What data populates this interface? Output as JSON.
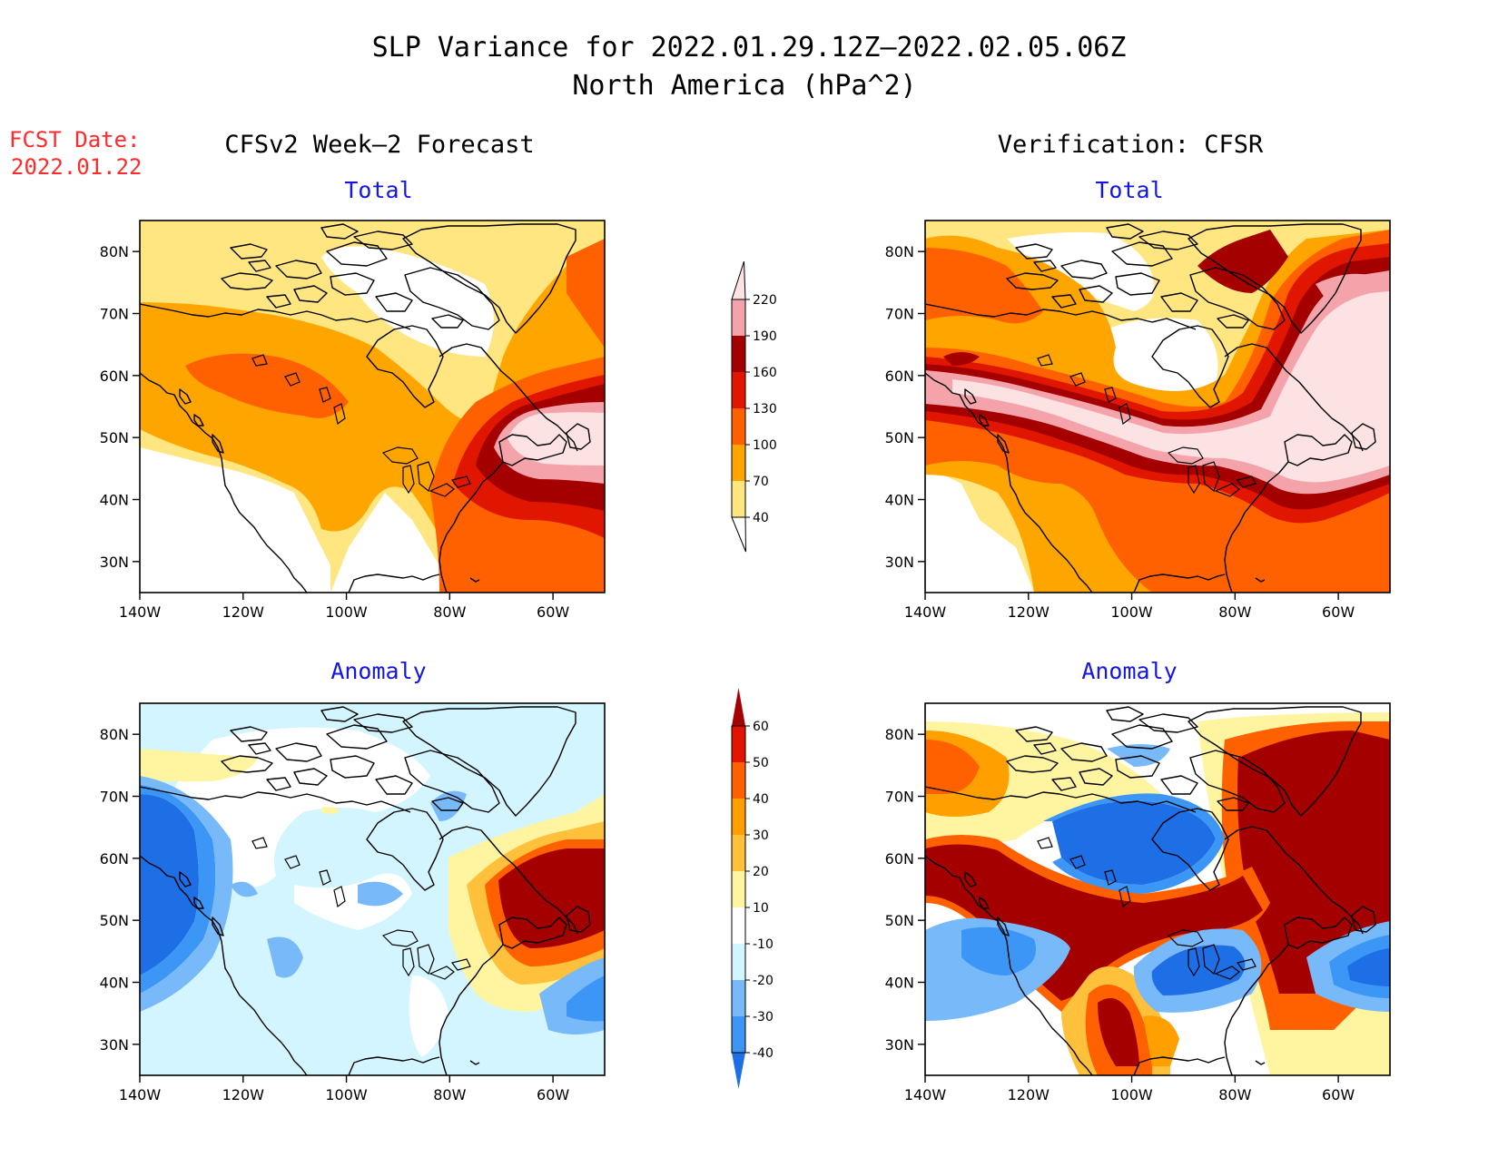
{
  "title": "SLP Variance for 2022.01.29.12Z–2022.02.05.06Z",
  "subtitle": "North America (hPa^2)",
  "fcst_date": {
    "label": "FCST Date:",
    "value": "2022.01.22"
  },
  "columns": {
    "forecast": "CFSv2 Week–2 Forecast",
    "verification": "Verification: CFSR"
  },
  "panels": {
    "total": "Total",
    "anomaly": "Anomaly"
  },
  "axes": {
    "lon_labels": [
      "140W",
      "120W",
      "100W",
      "80W",
      "60W"
    ],
    "lat_labels": [
      "80N",
      "70N",
      "60N",
      "50N",
      "40N",
      "30N"
    ]
  },
  "colorbars": {
    "total": {
      "levels": [
        "40",
        "70",
        "100",
        "130",
        "160",
        "190",
        "220"
      ],
      "colors": [
        "#ffe680",
        "#ffa500",
        "#ff6100",
        "#e11600",
        "#a50000",
        "#f5a3ab",
        "#fde2e4"
      ]
    },
    "anomaly": {
      "levels": [
        "-40",
        "-30",
        "-20",
        "-10",
        "10",
        "20",
        "30",
        "40",
        "50",
        "60"
      ],
      "colors": [
        "#1e6ee6",
        "#3c96f5",
        "#78b9fa",
        "#d2f5ff",
        "#ffffff",
        "#fff5a0",
        "#ffc03c",
        "#ffa000",
        "#ff6000",
        "#e11400",
        "#a50000"
      ]
    }
  },
  "map_extent": {
    "lon_range": [
      "140W",
      "50W"
    ],
    "lat_range": [
      "25N",
      "85N"
    ]
  }
}
